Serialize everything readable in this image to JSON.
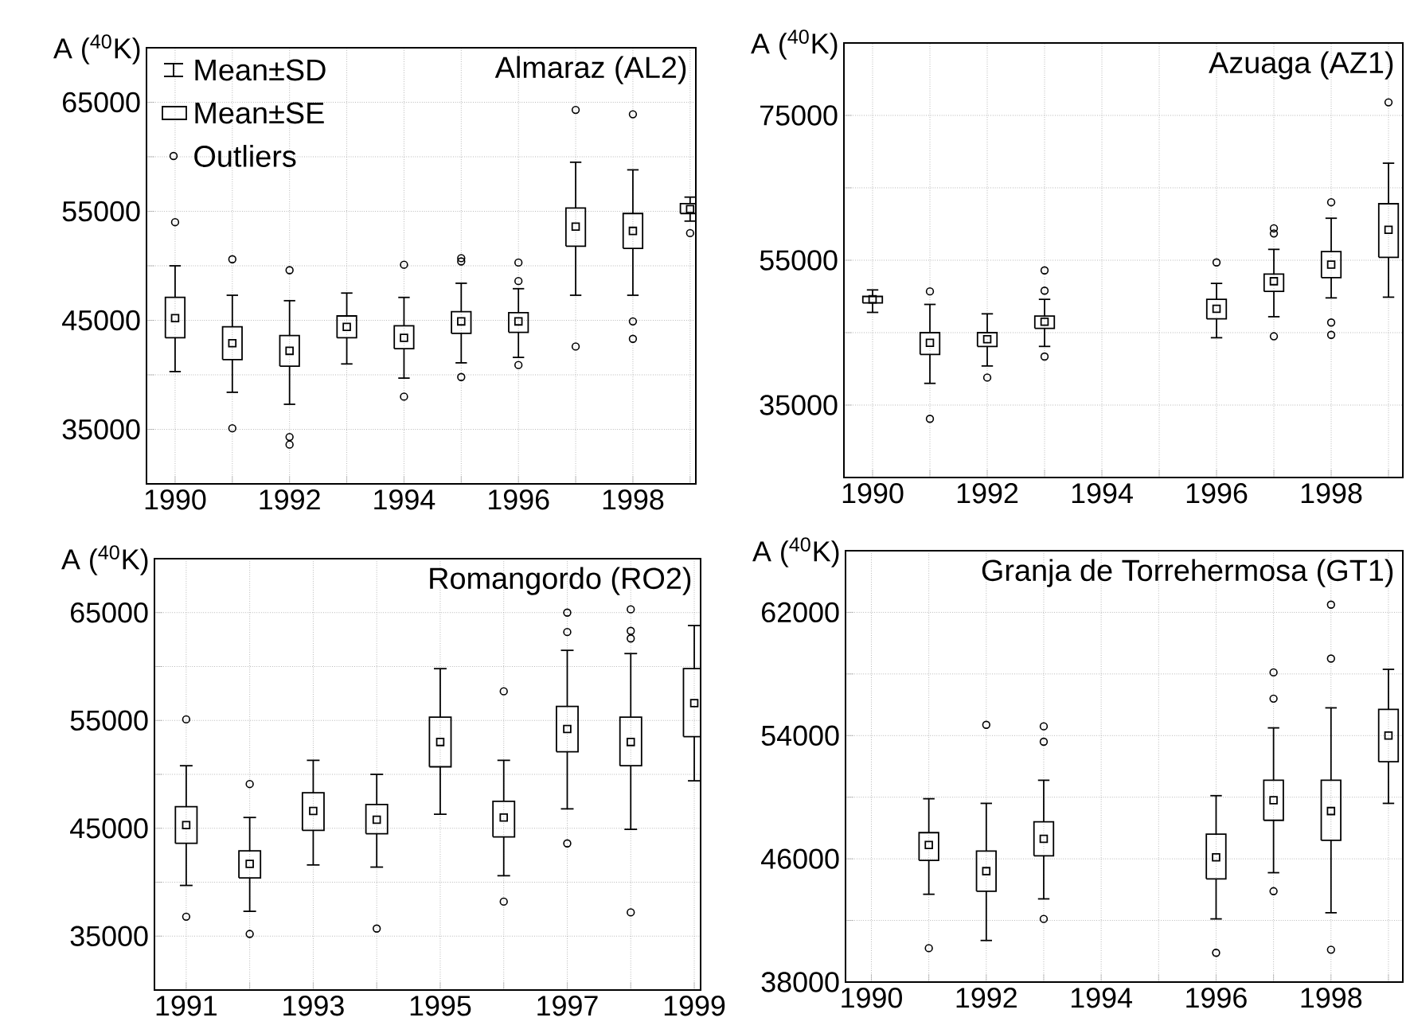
{
  "chart_data": [
    {
      "type": "box",
      "title": "Almaraz (AL2)",
      "ylabel": "A ($^{40}$K)",
      "grid": true,
      "annotations": [
        "Mean±SD",
        "Mean±SE",
        "Outliers"
      ],
      "x": [
        1990,
        1991,
        1992,
        1993,
        1994,
        1995,
        1996,
        1997,
        1998,
        1999
      ],
      "xlim": [
        1989.5,
        1999.1
      ],
      "xticks": [
        1990,
        {
          "value": 1991,
          "label": null
        },
        1992,
        {
          "value": 1993,
          "label": null
        },
        1994,
        {
          "value": 1995,
          "label": null
        },
        1996,
        {
          "value": 1997,
          "label": null
        },
        1998,
        {
          "value": 1999,
          "label": null
        }
      ],
      "ylim": [
        30000,
        70000
      ],
      "yticks": [
        35000,
        {
          "value": 40000,
          "label": null
        },
        45000,
        {
          "value": 50000,
          "label": null
        },
        55000,
        {
          "value": 60000,
          "label": null
        },
        65000
      ],
      "boxes": [
        {
          "low": 40300,
          "q1": 43400,
          "q3": 47100,
          "high": 50000,
          "mean": 45200,
          "outliers": [
            54000
          ]
        },
        {
          "low": 38400,
          "q1": 41400,
          "q3": 44400,
          "high": 47300,
          "mean": 42900,
          "outliers": [
            50600,
            35100
          ]
        },
        {
          "low": 37300,
          "q1": 40800,
          "q3": 43600,
          "high": 46800,
          "mean": 42200,
          "outliers": [
            49600,
            34300,
            33600
          ]
        },
        {
          "low": 41000,
          "q1": 43400,
          "q3": 45400,
          "high": 47500,
          "mean": 44400
        },
        {
          "low": 39700,
          "q1": 42400,
          "q3": 44500,
          "high": 47100,
          "mean": 43400,
          "outliers": [
            50100,
            38000
          ]
        },
        {
          "low": 41100,
          "q1": 43800,
          "q3": 45800,
          "high": 48400,
          "mean": 44900,
          "outliers": [
            50700,
            50400,
            39800
          ]
        },
        {
          "low": 41600,
          "q1": 43900,
          "q3": 45700,
          "high": 47900,
          "mean": 44900,
          "outliers": [
            50300,
            48600,
            40900
          ]
        },
        {
          "low": 47300,
          "q1": 51800,
          "q3": 55300,
          "high": 59500,
          "mean": 53600,
          "outliers": [
            64300,
            42600
          ]
        },
        {
          "low": 47300,
          "q1": 51600,
          "q3": 54800,
          "high": 58800,
          "mean": 53200,
          "outliers": [
            63900,
            44900,
            43300
          ]
        },
        {
          "low": 54100,
          "q1": 54800,
          "q3": 55700,
          "high": 56300,
          "mean": 55200,
          "outliers": [
            53000
          ]
        }
      ]
    },
    {
      "type": "box",
      "title": "Azuaga (AZ1)",
      "ylabel": "A ($^{40}$K)",
      "grid": true,
      "x": [
        1990,
        1991,
        1992,
        1993,
        1996,
        1997,
        1998,
        1999
      ],
      "xlim": [
        1989.5,
        1999.25
      ],
      "xticks": [
        1990,
        {
          "value": 1991,
          "label": null
        },
        1992,
        {
          "value": 1993,
          "label": null
        },
        1994,
        {
          "value": 1995,
          "label": null
        },
        1996,
        {
          "value": 1997,
          "label": null
        },
        1998,
        {
          "value": 1999,
          "label": null
        }
      ],
      "ylim": [
        25000,
        85000
      ],
      "yticks": [
        35000,
        {
          "value": 45000,
          "label": null
        },
        55000,
        {
          "value": 65000,
          "label": null
        },
        75000
      ],
      "boxes": [
        {
          "low": 47800,
          "q1": 49100,
          "q3": 50000,
          "high": 50900,
          "mean": 49600
        },
        {
          "low": 38000,
          "q1": 42000,
          "q3": 45000,
          "high": 48900,
          "mean": 43600,
          "outliers": [
            50700,
            33100
          ]
        },
        {
          "low": 40400,
          "q1": 43100,
          "q3": 45000,
          "high": 47600,
          "mean": 44100,
          "outliers": [
            38800
          ]
        },
        {
          "low": 43100,
          "q1": 45600,
          "q3": 47300,
          "high": 49600,
          "mean": 46500,
          "outliers": [
            53600,
            50800,
            41700
          ]
        },
        {
          "low": 44300,
          "q1": 46900,
          "q3": 49600,
          "high": 51800,
          "mean": 48300,
          "outliers": [
            54700
          ]
        },
        {
          "low": 47200,
          "q1": 50700,
          "q3": 53100,
          "high": 56500,
          "mean": 52100,
          "outliers": [
            59400,
            58700,
            44500
          ]
        },
        {
          "low": 49800,
          "q1": 52600,
          "q3": 56200,
          "high": 60800,
          "mean": 54400,
          "outliers": [
            63000,
            46400,
            44700
          ]
        },
        {
          "low": 49900,
          "q1": 55400,
          "q3": 62800,
          "high": 68400,
          "mean": 59200,
          "outliers": [
            76800
          ]
        }
      ]
    },
    {
      "type": "box",
      "title": "Romangordo (RO2)",
      "ylabel": "A ($^{40}$K)",
      "grid": true,
      "x": [
        1991,
        1992,
        1993,
        1994,
        1995,
        1996,
        1997,
        1998,
        1999
      ],
      "xlim": [
        1990.5,
        1999.1
      ],
      "xticks": [
        1991,
        {
          "value": 1992,
          "label": null
        },
        1993,
        {
          "value": 1994,
          "label": null
        },
        1995,
        {
          "value": 1996,
          "label": null
        },
        1997,
        {
          "value": 1998,
          "label": null
        },
        1999
      ],
      "ylim": [
        30000,
        70000
      ],
      "yticks": [
        35000,
        {
          "value": 40000,
          "label": null
        },
        45000,
        {
          "value": 50000,
          "label": null
        },
        55000,
        {
          "value": 60000,
          "label": null
        },
        65000
      ],
      "boxes": [
        {
          "low": 39700,
          "q1": 43600,
          "q3": 47000,
          "high": 50800,
          "mean": 45300,
          "outliers": [
            55100,
            36800
          ]
        },
        {
          "low": 37300,
          "q1": 40400,
          "q3": 42900,
          "high": 46000,
          "mean": 41700,
          "outliers": [
            49100,
            35200
          ]
        },
        {
          "low": 41600,
          "q1": 44800,
          "q3": 48300,
          "high": 51300,
          "mean": 46600
        },
        {
          "low": 41400,
          "q1": 44500,
          "q3": 47200,
          "high": 50000,
          "mean": 45800,
          "outliers": [
            35700
          ]
        },
        {
          "low": 46300,
          "q1": 50700,
          "q3": 55300,
          "high": 59800,
          "mean": 53000
        },
        {
          "low": 40600,
          "q1": 44200,
          "q3": 47500,
          "high": 51300,
          "mean": 46000,
          "outliers": [
            57700,
            38200
          ]
        },
        {
          "low": 46800,
          "q1": 52100,
          "q3": 56300,
          "high": 61500,
          "mean": 54200,
          "outliers": [
            65000,
            63200,
            43600
          ]
        },
        {
          "low": 44900,
          "q1": 50800,
          "q3": 55300,
          "high": 61200,
          "mean": 53000,
          "outliers": [
            65300,
            63300,
            62600,
            37200
          ]
        },
        {
          "low": 49400,
          "q1": 53500,
          "q3": 59800,
          "high": 63800,
          "mean": 56600
        }
      ]
    },
    {
      "type": "box",
      "title": "Granja de Torrehermosa (GT1)",
      "ylabel": "A ($^{40}$K)",
      "grid": true,
      "x": [
        1991,
        1992,
        1993,
        1996,
        1997,
        1998,
        1999
      ],
      "xlim": [
        1989.55,
        1999.25
      ],
      "xticks": [
        1990,
        {
          "value": 1991,
          "label": null
        },
        1992,
        {
          "value": 1993,
          "label": null
        },
        1994,
        {
          "value": 1995,
          "label": null
        },
        1996,
        {
          "value": 1997,
          "label": null
        },
        1998,
        {
          "value": 1999,
          "label": null
        }
      ],
      "ylim": [
        38000,
        66000
      ],
      "yticks": [
        38000,
        {
          "value": 42000,
          "label": null
        },
        46000,
        {
          "value": 50000,
          "label": null
        },
        54000,
        {
          "value": 58000,
          "label": null
        },
        62000
      ],
      "boxes": [
        {
          "low": 43700,
          "q1": 45900,
          "q3": 47700,
          "high": 49900,
          "mean": 46900,
          "outliers": [
            40200
          ]
        },
        {
          "low": 40700,
          "q1": 43900,
          "q3": 46500,
          "high": 49600,
          "mean": 45200,
          "outliers": [
            54700
          ]
        },
        {
          "low": 43400,
          "q1": 46200,
          "q3": 48400,
          "high": 51100,
          "mean": 47300,
          "outliers": [
            54600,
            53600,
            42100
          ]
        },
        {
          "low": 42100,
          "q1": 44700,
          "q3": 47600,
          "high": 50100,
          "mean": 46100,
          "outliers": [
            39900
          ]
        },
        {
          "low": 45100,
          "q1": 48500,
          "q3": 51100,
          "high": 54500,
          "mean": 49800,
          "outliers": [
            58100,
            56400,
            43900
          ]
        },
        {
          "low": 42500,
          "q1": 47200,
          "q3": 51100,
          "high": 55800,
          "mean": 49100,
          "outliers": [
            62500,
            59000,
            40100
          ]
        },
        {
          "low": 49600,
          "q1": 52300,
          "q3": 55700,
          "high": 58300,
          "mean": 54000
        }
      ]
    }
  ]
}
